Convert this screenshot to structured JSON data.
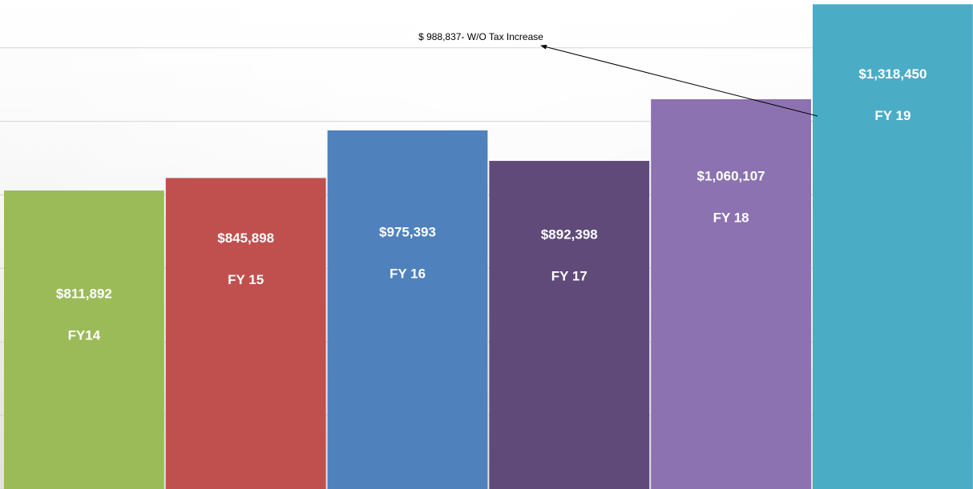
{
  "chart_data": {
    "type": "bar",
    "categories": [
      "FY14",
      "FY 15",
      "FY 16",
      "FY 17",
      "FY 18",
      "FY 19"
    ],
    "values": [
      811892,
      845898,
      975393,
      892398,
      1060107,
      1318450
    ],
    "value_labels": [
      "$811,892",
      "$845,898",
      "$975,393",
      "$892,398",
      "$1,060,107",
      "$1,318,450"
    ],
    "colors": [
      "#9bbb59",
      "#c0504d",
      "#4f81bd",
      "#5f4a7a",
      "#8c72b0",
      "#4bacc6"
    ],
    "ylim": [
      0,
      1330000
    ],
    "yticks": [
      0,
      200000,
      400000,
      600000,
      800000,
      1000000,
      1200000
    ],
    "grid": true,
    "annotation": "$ 988,837- W/O Tax Increase"
  }
}
